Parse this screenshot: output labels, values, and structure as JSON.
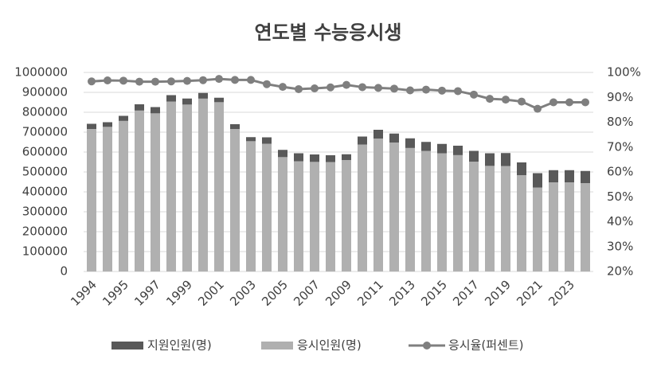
{
  "chart_data": {
    "type": "bar-line",
    "title": "연도별 수능응시생",
    "categories": [
      "1994",
      null,
      "1995",
      null,
      "1997",
      null,
      "1999",
      null,
      "2001",
      null,
      "2003",
      null,
      "2005",
      null,
      "2007",
      null,
      "2009",
      null,
      "2011",
      null,
      "2013",
      null,
      "2015",
      null,
      "2017",
      null,
      "2019",
      null,
      "2021",
      null,
      "2023",
      null
    ],
    "series": [
      {
        "name": "지원인원(명)",
        "color": "#595959",
        "values": [
          742000,
          750000,
          782000,
          840000,
          826000,
          886000,
          869000,
          897000,
          873000,
          740000,
          675000,
          674000,
          611000,
          594000,
          588000,
          584000,
          589000,
          678000,
          712000,
          693000,
          669000,
          651000,
          641000,
          632000,
          606000,
          594000,
          595000,
          548000,
          494000,
          509000,
          509000,
          505000
        ]
      },
      {
        "name": "응시인원(명)",
        "color": "#b0b0b0",
        "values": [
          716000,
          727000,
          757000,
          809000,
          795000,
          854000,
          839000,
          869000,
          851000,
          716000,
          655000,
          642000,
          575000,
          554000,
          551000,
          550000,
          560000,
          638000,
          668000,
          648000,
          621000,
          606000,
          594000,
          585000,
          552000,
          531000,
          530000,
          484000,
          422000,
          448000,
          448000,
          444000
        ]
      },
      {
        "name": "응시율(퍼센트)",
        "color": "#7f7f7f",
        "axis": "y2",
        "values": [
          96.4,
          96.8,
          96.7,
          96.3,
          96.3,
          96.4,
          96.6,
          96.9,
          97.4,
          97.0,
          97.0,
          95.3,
          94.2,
          93.3,
          93.6,
          94.0,
          95.0,
          94.1,
          93.8,
          93.5,
          92.8,
          93.1,
          92.7,
          92.5,
          91.1,
          89.4,
          89.1,
          88.3,
          85.4,
          88.0,
          88.0,
          88.0
        ]
      }
    ],
    "ylim": [
      0,
      1000000
    ],
    "yticks": [
      0,
      100000,
      200000,
      300000,
      400000,
      500000,
      600000,
      700000,
      800000,
      900000,
      1000000
    ],
    "y2lim": [
      20,
      100
    ],
    "y2ticks": [
      {
        "value": 20,
        "label": "20%"
      },
      {
        "value": 30,
        "label": "30%"
      },
      {
        "value": 40,
        "label": "40%"
      },
      {
        "value": 50,
        "label": "50%"
      },
      {
        "value": 60,
        "label": "60%"
      },
      {
        "value": 70,
        "label": "70%"
      },
      {
        "value": 80,
        "label": "80%"
      },
      {
        "value": 90,
        "label": "90%"
      },
      {
        "value": 100,
        "label": "100%"
      }
    ],
    "grid": true,
    "legend": "bottom"
  }
}
